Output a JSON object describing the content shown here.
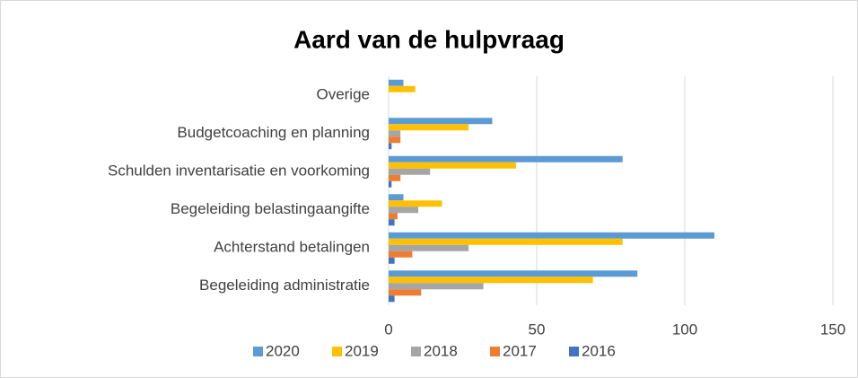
{
  "chart_data": {
    "type": "bar",
    "orientation": "horizontal",
    "title": "Aard van de hulpvraag",
    "categories": [
      "Overige",
      "Budgetcoaching en planning",
      "Schulden inventarisatie en voorkoming",
      "Begeleiding belastingaangifte",
      "Achterstand betalingen",
      "Begeleiding administratie"
    ],
    "series": [
      {
        "name": "2020",
        "color": "#5b9bd5",
        "values": [
          5,
          35,
          79,
          5,
          110,
          84
        ]
      },
      {
        "name": "2019",
        "color": "#ffc000",
        "values": [
          9,
          27,
          43,
          18,
          79,
          69
        ]
      },
      {
        "name": "2018",
        "color": "#a5a5a5",
        "values": [
          0,
          4,
          14,
          10,
          27,
          32
        ]
      },
      {
        "name": "2017",
        "color": "#ed7d31",
        "values": [
          0,
          4,
          4,
          3,
          8,
          11
        ]
      },
      {
        "name": "2016",
        "color": "#4472c4",
        "values": [
          0,
          1,
          1,
          2,
          2,
          2
        ]
      }
    ],
    "xlim": [
      0,
      150
    ],
    "xticks": [
      0,
      50,
      100,
      150
    ],
    "grid": true,
    "legend": "bottom"
  }
}
